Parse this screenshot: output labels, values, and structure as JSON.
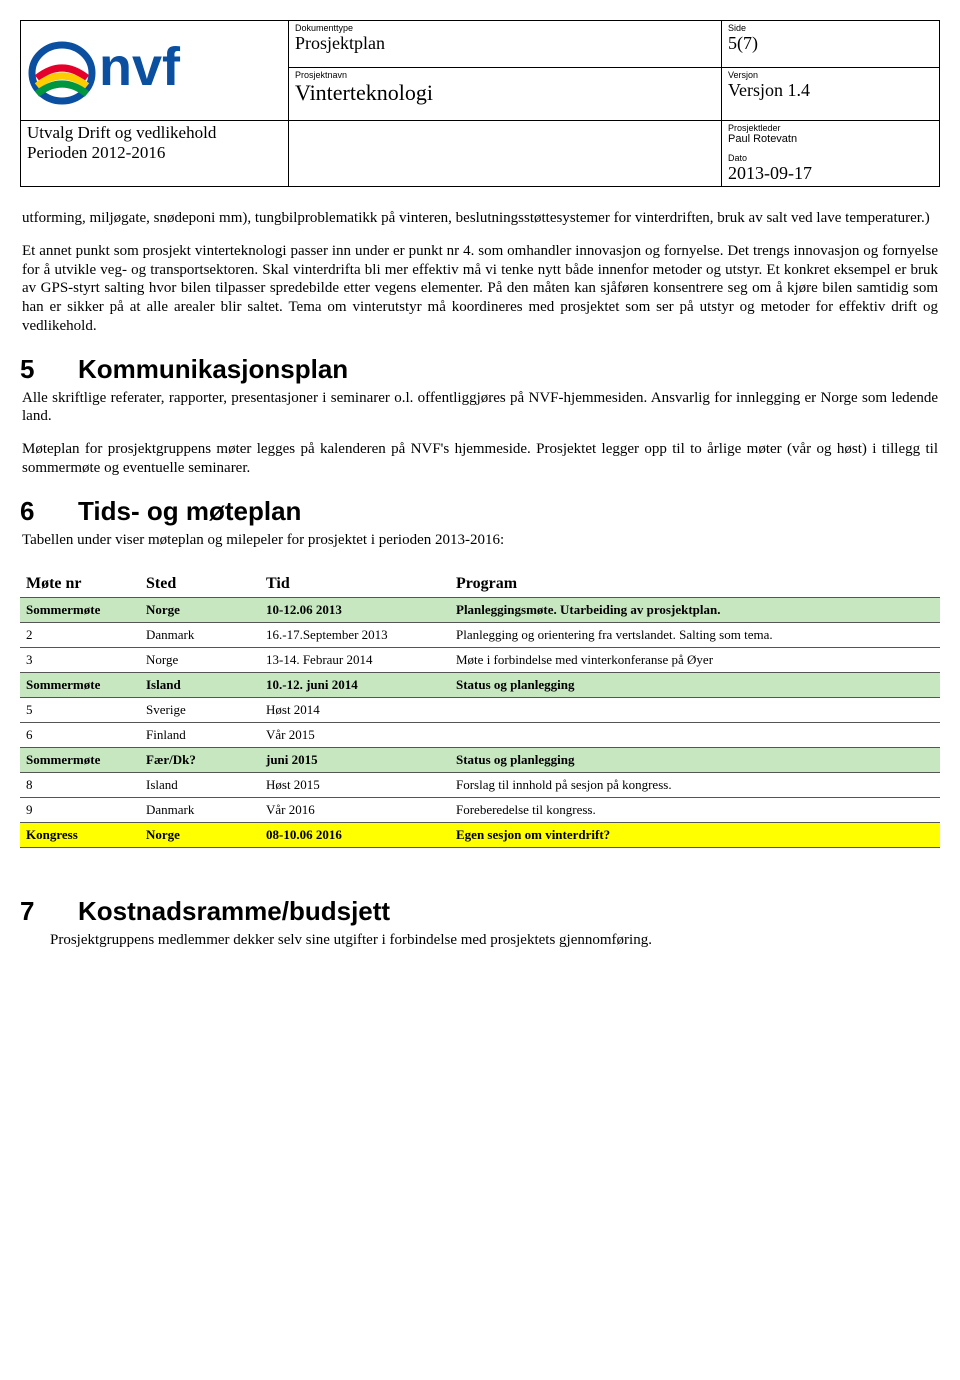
{
  "header": {
    "labels": {
      "dokumenttype": "Dokumenttype",
      "side": "Side",
      "prosjektnavn": "Prosjektnavn",
      "versjon": "Versjon",
      "prosjektleder": "Prosjektleder",
      "dato": "Dato"
    },
    "dokumenttype": "Prosjektplan",
    "side": "5(7)",
    "prosjektnavn": "Vinterteknologi",
    "versjon": "Versjon 1.4",
    "left_line1": "Utvalg Drift og vedlikehold",
    "left_line2": "Perioden 2012-2016",
    "prosjektleder": "Paul Rotevatn",
    "dato": "2013-09-17"
  },
  "para1": "utforming, miljøgate, snødeponi mm), tungbilproblematikk på vinteren, beslutningsstøttesystemer for vinterdriften, bruk av salt ved lave temperaturer.)",
  "para2": "Et annet punkt som prosjekt vinterteknologi passer inn under er punkt nr 4. som omhandler innovasjon og fornyelse. Det trengs innovasjon og fornyelse for å utvikle veg- og transportsektoren. Skal vinterdrifta bli mer effektiv må vi tenke nytt både innenfor metoder og utstyr. Et konkret eksempel er bruk av GPS-styrt salting hvor bilen tilpasser spredebilde etter vegens elementer. På den måten kan sjåføren konsentrere seg om å kjøre bilen samtidig som han er sikker på at alle arealer blir saltet. Tema om vinterutstyr må koordineres med prosjektet som ser på utstyr og metoder for effektiv drift og vedlikehold.",
  "sec5": {
    "num": "5",
    "title": "Kommunikasjonsplan",
    "p1": "Alle skriftlige referater, rapporter,  presentasjoner i seminarer o.l. offentliggjøres på NVF-hjemmesiden. Ansvarlig for innlegging er Norge som ledende land.",
    "p2": "Møteplan for prosjektgruppens møter legges på kalenderen på NVF's hjemmeside. Prosjektet legger opp til to årlige møter (vår og høst) i tillegg til sommermøte og eventuelle seminarer."
  },
  "sec6": {
    "num": "6",
    "title": "Tids- og møteplan",
    "intro": "Tabellen under viser møteplan og milepeler for prosjektet i perioden 2013-2016:",
    "columns": [
      "Møte nr",
      "Sted",
      "Tid",
      "Program"
    ],
    "rows": [
      {
        "cls": "row-green row-bold",
        "c": [
          "Sommermøte",
          "Norge",
          "10-12.06 2013",
          "Planleggingsmøte. Utarbeiding av prosjektplan."
        ]
      },
      {
        "cls": "",
        "c": [
          "2",
          "Danmark",
          "16.-17.September 2013",
          "Planlegging og orientering fra vertslandet. Salting som tema."
        ]
      },
      {
        "cls": "",
        "c": [
          "3",
          "Norge",
          "13-14. Febraur 2014",
          "Møte i forbindelse med vinterkonferanse på Øyer"
        ]
      },
      {
        "cls": "row-green row-bold",
        "c": [
          "Sommermøte",
          "Island",
          "10.-12. juni 2014",
          "Status og planlegging"
        ]
      },
      {
        "cls": "",
        "c": [
          "5",
          "Sverige",
          "Høst 2014",
          ""
        ]
      },
      {
        "cls": "",
        "c": [
          "6",
          "Finland",
          "Vår 2015",
          ""
        ]
      },
      {
        "cls": "row-green row-bold",
        "c": [
          "Sommermøte",
          "Fær/Dk?",
          "juni 2015",
          "Status og planlegging"
        ]
      },
      {
        "cls": "",
        "c": [
          "8",
          "Island",
          "Høst 2015",
          "Forslag til innhold på sesjon på kongress."
        ]
      },
      {
        "cls": "",
        "c": [
          "9",
          "Danmark",
          "Vår 2016",
          "Foreberedelse til kongress."
        ]
      },
      {
        "cls": "row-yellow row-bold",
        "c": [
          "Kongress",
          "Norge",
          "08-10.06 2016",
          "Egen sesjon om vinterdrift?"
        ]
      }
    ],
    "col_widths": [
      "120px",
      "120px",
      "180px",
      "auto"
    ]
  },
  "sec7": {
    "num": "7",
    "title": "Kostnadsramme/budsjett",
    "p1": "Prosjektgruppens medlemmer dekker selv sine utgifter i forbindelse med prosjektets gjennomføring."
  },
  "colors": {
    "green": "#c7e7c1",
    "yellow": "#ffff00",
    "text": "#000000",
    "bg": "#ffffff",
    "border": "#000000"
  }
}
